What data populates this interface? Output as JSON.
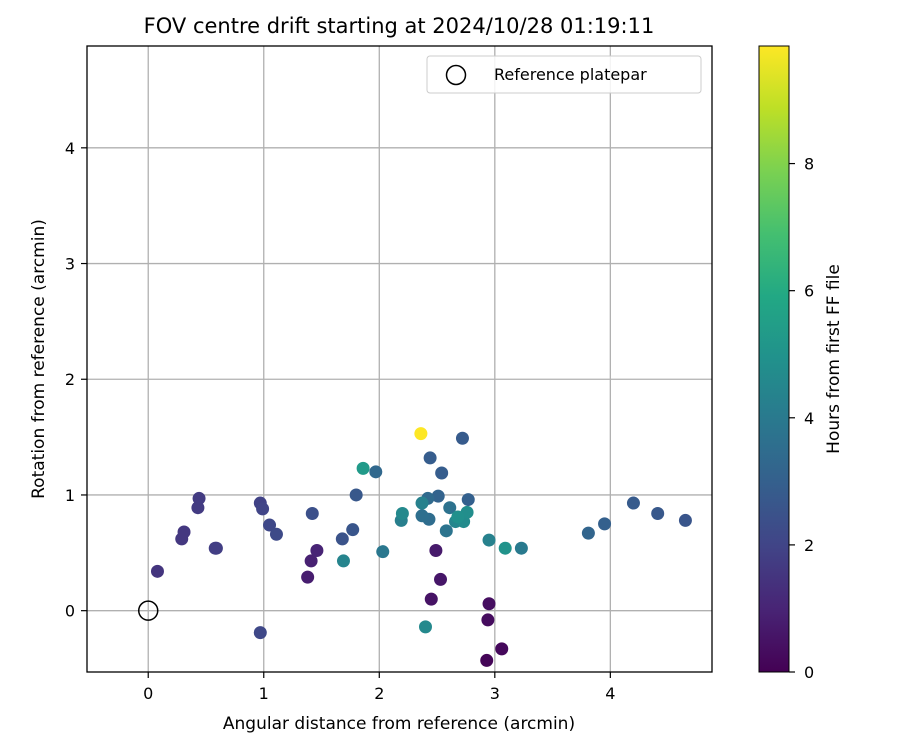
{
  "chart_data": {
    "type": "scatter",
    "title": "FOV centre drift starting at 2024/10/28 01:19:11",
    "xlabel": "Angular distance from reference (arcmin)",
    "ylabel": "Rotation from reference (arcmin)",
    "xlim": [
      -0.53,
      4.88
    ],
    "ylim": [
      -0.53,
      4.88
    ],
    "xticks": [
      0,
      1,
      2,
      3,
      4
    ],
    "yticks": [
      0,
      1,
      2,
      3,
      4
    ],
    "xtick_labels": [
      "0",
      "1",
      "2",
      "3",
      "4"
    ],
    "ytick_labels": [
      "0",
      "1",
      "2",
      "3",
      "4"
    ],
    "grid": true,
    "legend": {
      "placement": "top-right",
      "entries": [
        {
          "label": "Reference platepar",
          "marker": "open-circle"
        }
      ]
    },
    "reference_point": {
      "x": 0,
      "y": 0,
      "label": "Reference platepar"
    },
    "colorbar": {
      "label": "Hours from first FF file",
      "colormap": "viridis",
      "range": [
        0,
        9.85
      ],
      "ticks": [
        0,
        2,
        4,
        6,
        8
      ],
      "tick_labels": [
        "0",
        "2",
        "4",
        "6",
        "8"
      ]
    },
    "points": [
      {
        "x": 2.93,
        "y": -0.43,
        "c": 0.1
      },
      {
        "x": 3.06,
        "y": -0.33,
        "c": 0.2
      },
      {
        "x": 2.94,
        "y": -0.08,
        "c": 0.3
      },
      {
        "x": 2.95,
        "y": 0.06,
        "c": 0.4
      },
      {
        "x": 2.45,
        "y": 0.1,
        "c": 0.5
      },
      {
        "x": 2.53,
        "y": 0.27,
        "c": 0.6
      },
      {
        "x": 2.49,
        "y": 0.52,
        "c": 0.7
      },
      {
        "x": 1.38,
        "y": 0.29,
        "c": 0.8
      },
      {
        "x": 1.41,
        "y": 0.43,
        "c": 0.9
      },
      {
        "x": 1.46,
        "y": 0.52,
        "c": 1.0
      },
      {
        "x": 0.08,
        "y": 0.34,
        "c": 1.5
      },
      {
        "x": 0.29,
        "y": 0.62,
        "c": 1.6
      },
      {
        "x": 0.31,
        "y": 0.68,
        "c": 1.6
      },
      {
        "x": 0.43,
        "y": 0.89,
        "c": 1.7
      },
      {
        "x": 0.44,
        "y": 0.97,
        "c": 1.7
      },
      {
        "x": 0.58,
        "y": 0.54,
        "c": 1.8
      },
      {
        "x": 0.59,
        "y": 0.54,
        "c": 1.8
      },
      {
        "x": 0.97,
        "y": 0.93,
        "c": 1.9
      },
      {
        "x": 0.99,
        "y": 0.88,
        "c": 2.0
      },
      {
        "x": 0.97,
        "y": -0.19,
        "c": 2.1
      },
      {
        "x": 1.05,
        "y": 0.74,
        "c": 2.1
      },
      {
        "x": 1.11,
        "y": 0.66,
        "c": 2.2
      },
      {
        "x": 1.42,
        "y": 0.84,
        "c": 2.4
      },
      {
        "x": 1.68,
        "y": 0.62,
        "c": 2.5
      },
      {
        "x": 1.77,
        "y": 0.7,
        "c": 2.6
      },
      {
        "x": 1.8,
        "y": 1.0,
        "c": 2.7
      },
      {
        "x": 4.65,
        "y": 0.78,
        "c": 2.6
      },
      {
        "x": 4.41,
        "y": 0.84,
        "c": 2.7
      },
      {
        "x": 4.2,
        "y": 0.93,
        "c": 2.8
      },
      {
        "x": 2.72,
        "y": 1.49,
        "c": 2.8
      },
      {
        "x": 2.44,
        "y": 1.32,
        "c": 2.9
      },
      {
        "x": 2.54,
        "y": 1.19,
        "c": 2.9
      },
      {
        "x": 2.77,
        "y": 0.96,
        "c": 3.0
      },
      {
        "x": 2.51,
        "y": 0.99,
        "c": 3.1
      },
      {
        "x": 3.95,
        "y": 0.75,
        "c": 3.0
      },
      {
        "x": 3.81,
        "y": 0.67,
        "c": 3.2
      },
      {
        "x": 1.97,
        "y": 1.2,
        "c": 3.3
      },
      {
        "x": 2.42,
        "y": 0.97,
        "c": 3.4
      },
      {
        "x": 2.43,
        "y": 0.79,
        "c": 3.5
      },
      {
        "x": 2.37,
        "y": 0.82,
        "c": 3.6
      },
      {
        "x": 2.61,
        "y": 0.89,
        "c": 3.7
      },
      {
        "x": 2.58,
        "y": 0.69,
        "c": 3.8
      },
      {
        "x": 2.03,
        "y": 0.51,
        "c": 3.9
      },
      {
        "x": 3.23,
        "y": 0.54,
        "c": 4.0
      },
      {
        "x": 2.19,
        "y": 0.78,
        "c": 4.2
      },
      {
        "x": 2.95,
        "y": 0.61,
        "c": 4.3
      },
      {
        "x": 2.37,
        "y": 0.93,
        "c": 4.3
      },
      {
        "x": 1.69,
        "y": 0.43,
        "c": 4.4
      },
      {
        "x": 2.66,
        "y": 0.77,
        "c": 4.5
      },
      {
        "x": 2.2,
        "y": 0.84,
        "c": 4.6
      },
      {
        "x": 2.4,
        "y": -0.14,
        "c": 4.6
      },
      {
        "x": 2.73,
        "y": 0.77,
        "c": 4.7
      },
      {
        "x": 2.76,
        "y": 0.85,
        "c": 4.8
      },
      {
        "x": 2.68,
        "y": 0.81,
        "c": 4.9
      },
      {
        "x": 3.09,
        "y": 0.54,
        "c": 5.0
      },
      {
        "x": 1.86,
        "y": 1.23,
        "c": 5.3
      },
      {
        "x": 2.36,
        "y": 1.53,
        "c": 9.85
      }
    ]
  },
  "colors": {
    "reference_marker": "#000000",
    "grid": "#b0b0b0",
    "axes": "#000000",
    "legend_border": "#cccccc"
  }
}
